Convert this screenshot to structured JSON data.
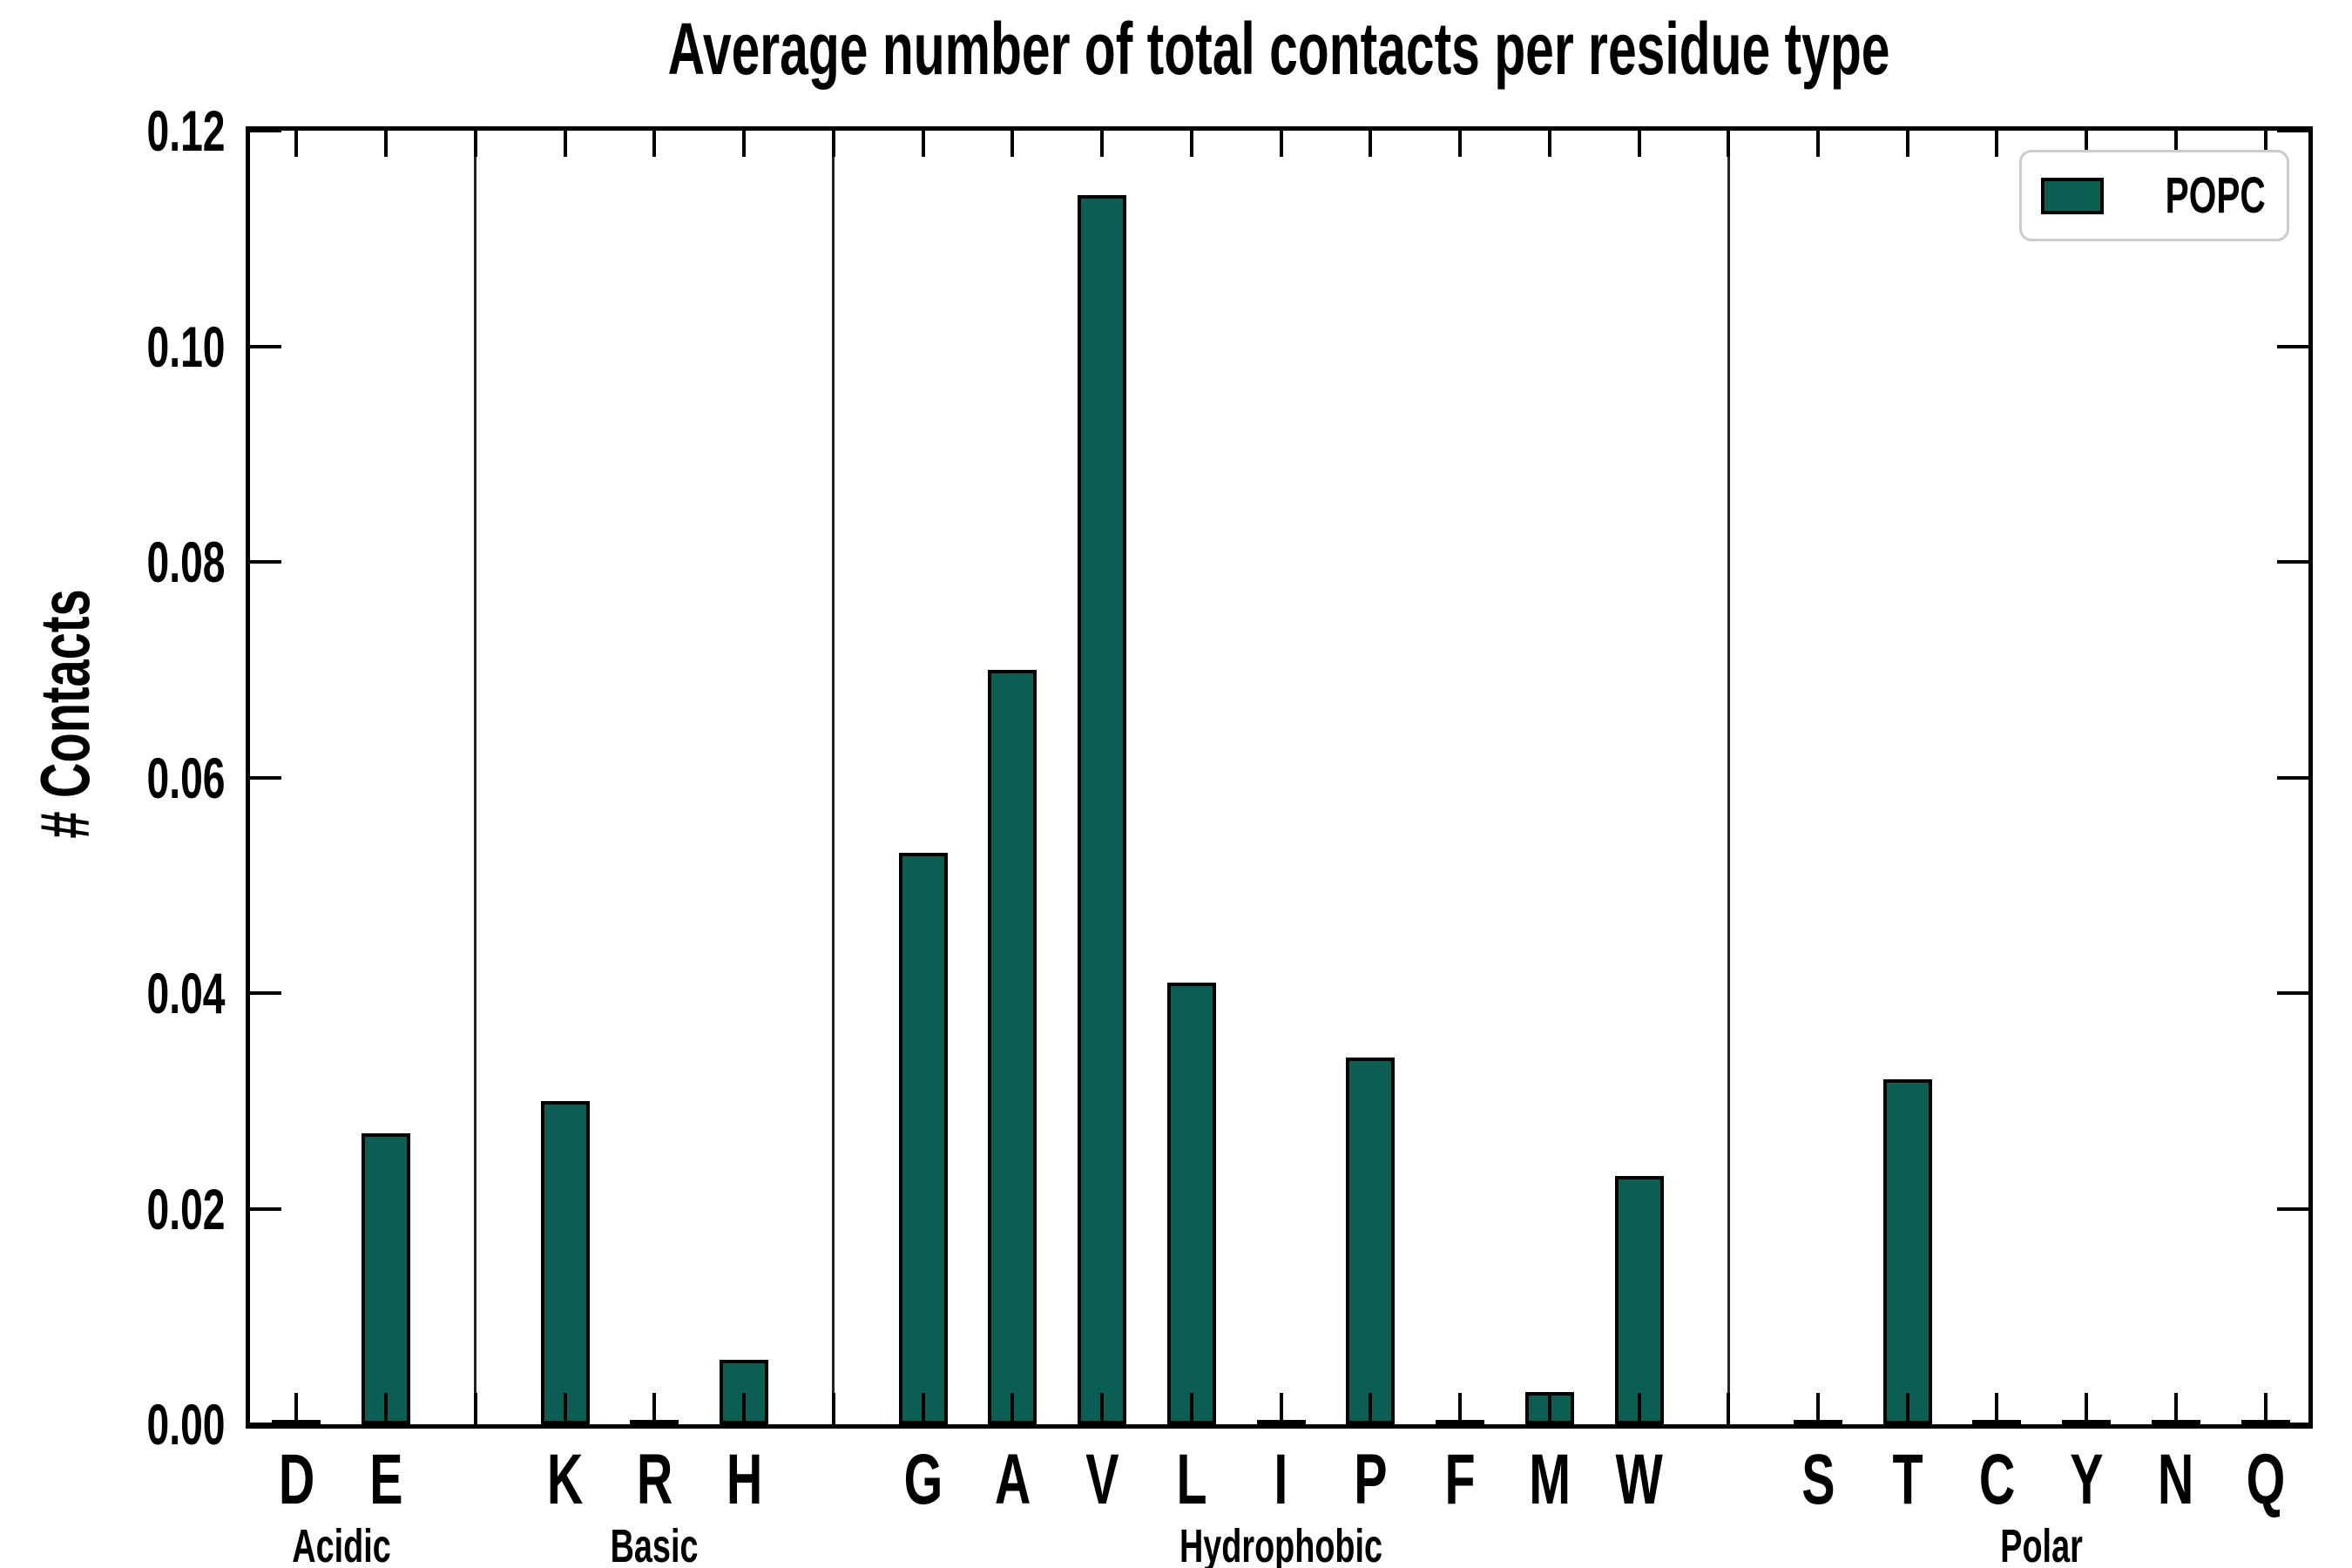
{
  "title": "Average number of total contacts per residue type",
  "axes": {
    "ylabel": "# Contacts",
    "ylim": [
      0,
      0.12
    ],
    "ytick_labels": [
      "0.00",
      "0.02",
      "0.04",
      "0.06",
      "0.08",
      "0.10",
      "0.12"
    ]
  },
  "legend": {
    "label": "POPC"
  },
  "colors": {
    "bar_fill": "#0A5F52",
    "bar_edge": "#000000",
    "divider_line": "#222222",
    "legend_border": "#cccccc",
    "text": "#000000"
  },
  "chart_data": {
    "type": "bar",
    "title": "Average number of total contacts per residue type",
    "xlabel": "",
    "ylabel": "# Contacts",
    "ylim": [
      0,
      0.12
    ],
    "yticks": [
      0.0,
      0.02,
      0.04,
      0.06,
      0.08,
      0.1,
      0.12
    ],
    "grid": false,
    "legend_position": "upper right",
    "legend_entries": [
      "POPC"
    ],
    "categories": [
      "D",
      "E",
      "K",
      "R",
      "H",
      "G",
      "A",
      "V",
      "L",
      "I",
      "P",
      "F",
      "M",
      "W",
      "S",
      "T",
      "C",
      "Y",
      "N",
      "Q"
    ],
    "values": [
      0.0,
      0.027,
      0.03,
      0.0,
      0.006,
      0.053,
      0.07,
      0.114,
      0.041,
      0.0,
      0.034,
      0.0,
      0.003,
      0.023,
      0.0,
      0.032,
      0.0,
      0.0,
      0.0,
      0.0
    ],
    "groups": [
      {
        "label": "Acidic",
        "start": 0,
        "end": 1
      },
      {
        "label": "Basic",
        "start": 2,
        "end": 4
      },
      {
        "label": "Hydrophobic",
        "start": 5,
        "end": 13
      },
      {
        "label": "Polar",
        "start": 14,
        "end": 19
      }
    ]
  }
}
